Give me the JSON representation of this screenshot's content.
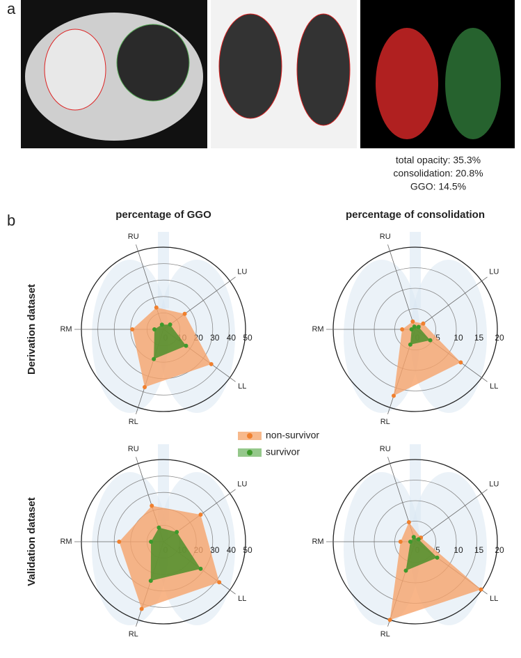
{
  "panel_labels": [
    "a",
    "b"
  ],
  "stats": [
    "total opacity: 35.3%",
    "consolidation: 20.8%",
    "GGO: 14.5%"
  ],
  "column_titles": [
    "percentage of GGO",
    "percentage of consolidation"
  ],
  "row_labels": [
    "Derivation dataset",
    "Validation dataset"
  ],
  "legend": [
    {
      "name": "non-survivor",
      "color": "#f0802e"
    },
    {
      "name": "survivor",
      "color": "#3e9a2c"
    }
  ],
  "chart_data": [
    {
      "type": "radar",
      "categories": [
        "RU",
        "LU",
        "LL",
        "RL",
        "RM"
      ],
      "rlim": [
        0,
        50
      ],
      "rticks": [
        0,
        10,
        20,
        30,
        40,
        50
      ],
      "series": [
        {
          "values": [
            14,
            16,
            36,
            37,
            19
          ]
        },
        {
          "values": [
            3,
            5,
            17,
            19,
            5.5
          ]
        }
      ]
    },
    {
      "type": "radar",
      "categories": [
        "RU",
        "LU",
        "LL",
        "RL",
        "RM"
      ],
      "rlim": [
        0,
        20
      ],
      "rticks": [
        0,
        5,
        10,
        15,
        20
      ],
      "series": [
        {
          "values": [
            2,
            2.4,
            13.7,
            17,
            3.2
          ]
        },
        {
          "values": [
            0.7,
            1,
            4.5,
            3.9,
            0.9
          ]
        }
      ]
    },
    {
      "type": "radar",
      "categories": [
        "RU",
        "LU",
        "LL",
        "RL",
        "RM"
      ],
      "rlim": [
        0,
        50
      ],
      "rticks": [
        0,
        10,
        20,
        30,
        40,
        50
      ],
      "series": [
        {
          "values": [
            23,
            28,
            42,
            43,
            27
          ]
        },
        {
          "values": [
            9,
            10,
            28,
            25,
            7.6
          ]
        }
      ]
    },
    {
      "type": "radar",
      "categories": [
        "RU",
        "LU",
        "LL",
        "RL",
        "RM"
      ],
      "rlim": [
        0,
        20
      ],
      "rticks": [
        0,
        5,
        10,
        15,
        20
      ],
      "series": [
        {
          "values": [
            5,
            1.7,
            19.8,
            20,
            3.6
          ]
        },
        {
          "values": [
            1.2,
            1,
            6.6,
            7.4,
            1.2
          ]
        }
      ]
    }
  ]
}
